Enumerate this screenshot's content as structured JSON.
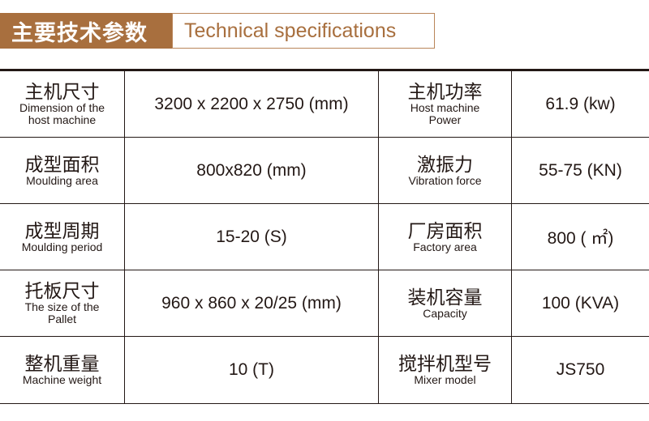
{
  "header": {
    "title_cn": "主要技术参数",
    "title_en": "Technical specifications",
    "accent_color": "#a86f3e"
  },
  "rows": [
    {
      "l_cn": "主机尺寸",
      "l_en": "Dimension of the host machine",
      "l_val": "3200 x 2200 x 2750 (mm)",
      "r_cn": "主机功率",
      "r_en": "Host machine Power",
      "r_val": "61.9 (kw)"
    },
    {
      "l_cn": "成型面积",
      "l_en": "Moulding area",
      "l_val": "800x820 (mm)",
      "r_cn": "激振力",
      "r_en": "Vibration force",
      "r_val": "55-75 (KN)"
    },
    {
      "l_cn": "成型周期",
      "l_en": "Moulding period",
      "l_val": "15-20 (S)",
      "r_cn": "厂房面积",
      "r_en": "Factory area",
      "r_val": "800 ( ㎡)"
    },
    {
      "l_cn": "托板尺寸",
      "l_en": "The size of the Pallet",
      "l_val": "960 x 860 x 20/25 (mm)",
      "r_cn": "装机容量",
      "r_en": "Capacity",
      "r_val": "100 (KVA)"
    },
    {
      "l_cn": "整机重量",
      "l_en": "Machine weight",
      "l_val": "10 (T)",
      "r_cn": "搅拌机型号",
      "r_en": "Mixer model",
      "r_val": "JS750"
    }
  ]
}
